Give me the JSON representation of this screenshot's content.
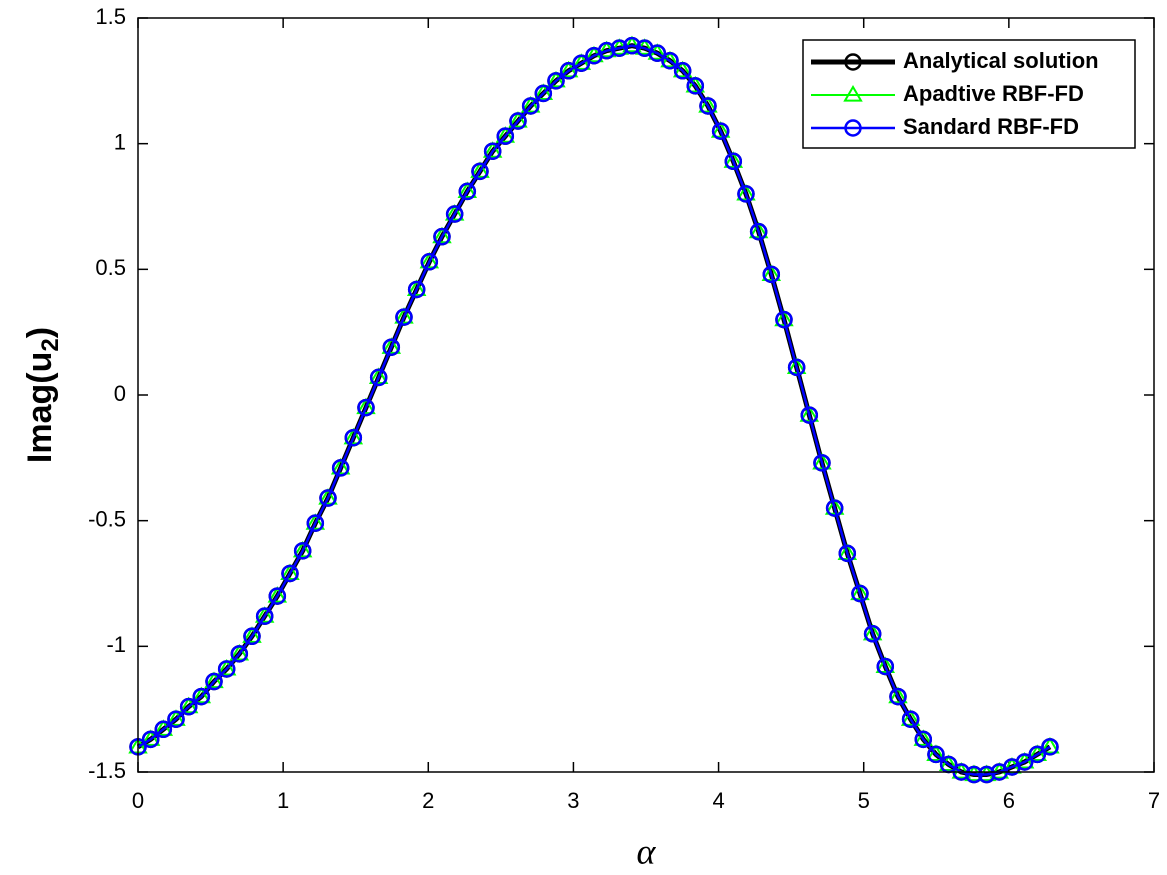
{
  "chart_data": {
    "type": "line",
    "xlabel": "α",
    "ylabel": {
      "main": "Imag(u",
      "sub": "2",
      "close": ")"
    },
    "xlim": [
      0,
      7
    ],
    "xticks": [
      0,
      1,
      2,
      3,
      4,
      5,
      6,
      7
    ],
    "ylim": [
      -1.5,
      1.5
    ],
    "yticks": [
      -1.5,
      -1,
      -0.5,
      0,
      0.5,
      1,
      1.5
    ],
    "grid": false,
    "legend": "northeast",
    "x": [
      0,
      0.0873,
      0.1745,
      0.2618,
      0.3491,
      0.4363,
      0.5236,
      0.6109,
      0.6981,
      0.7854,
      0.8727,
      0.9599,
      1.0472,
      1.1345,
      1.2217,
      1.309,
      1.3963,
      1.4835,
      1.5708,
      1.6581,
      1.7453,
      1.8326,
      1.9199,
      2.0071,
      2.0944,
      2.1817,
      2.2689,
      2.3562,
      2.4435,
      2.5307,
      2.618,
      2.7053,
      2.7925,
      2.8798,
      2.9671,
      3.0543,
      3.1416,
      3.2289,
      3.3161,
      3.4034,
      3.4907,
      3.5779,
      3.6652,
      3.7525,
      3.8397,
      3.927,
      4.0143,
      4.1015,
      4.1888,
      4.2761,
      4.3633,
      4.4506,
      4.5379,
      4.6251,
      4.7124,
      4.7997,
      4.8869,
      4.9742,
      5.0615,
      5.1487,
      5.236,
      5.3233,
      5.4105,
      5.4978,
      5.5851,
      5.6723,
      5.7596,
      5.8469,
      5.9341,
      6.0214,
      6.1087,
      6.1959,
      6.2832
    ],
    "series": [
      {
        "name": "Analytical solution",
        "color": "#000000",
        "marker": "circle",
        "width": 5,
        "values": [
          -1.4,
          -1.37,
          -1.33,
          -1.29,
          -1.24,
          -1.2,
          -1.14,
          -1.09,
          -1.03,
          -0.96,
          -0.88,
          -0.8,
          -0.71,
          -0.62,
          -0.51,
          -0.41,
          -0.29,
          -0.17,
          -0.05,
          0.07,
          0.19,
          0.31,
          0.42,
          0.53,
          0.63,
          0.72,
          0.81,
          0.89,
          0.97,
          1.03,
          1.09,
          1.15,
          1.2,
          1.25,
          1.29,
          1.32,
          1.35,
          1.37,
          1.38,
          1.39,
          1.38,
          1.36,
          1.33,
          1.29,
          1.23,
          1.15,
          1.05,
          0.93,
          0.8,
          0.65,
          0.48,
          0.3,
          0.11,
          -0.08,
          -0.27,
          -0.45,
          -0.63,
          -0.79,
          -0.95,
          -1.08,
          -1.2,
          -1.29,
          -1.37,
          -1.43,
          -1.47,
          -1.5,
          -1.51,
          -1.51,
          -1.5,
          -1.48,
          -1.46,
          -1.43,
          -1.4
        ]
      },
      {
        "name": "Apadtive RBF-FD",
        "color": "#00ff00",
        "marker": "triangle",
        "width": 2,
        "values": [
          -1.4,
          -1.37,
          -1.33,
          -1.29,
          -1.24,
          -1.2,
          -1.14,
          -1.09,
          -1.03,
          -0.96,
          -0.88,
          -0.8,
          -0.71,
          -0.62,
          -0.51,
          -0.41,
          -0.29,
          -0.17,
          -0.05,
          0.07,
          0.19,
          0.31,
          0.42,
          0.53,
          0.63,
          0.72,
          0.81,
          0.89,
          0.97,
          1.03,
          1.09,
          1.15,
          1.2,
          1.25,
          1.29,
          1.32,
          1.35,
          1.37,
          1.38,
          1.39,
          1.38,
          1.36,
          1.33,
          1.29,
          1.23,
          1.15,
          1.05,
          0.93,
          0.8,
          0.65,
          0.48,
          0.3,
          0.11,
          -0.08,
          -0.27,
          -0.45,
          -0.63,
          -0.79,
          -0.95,
          -1.08,
          -1.2,
          -1.29,
          -1.37,
          -1.43,
          -1.47,
          -1.5,
          -1.51,
          -1.51,
          -1.5,
          -1.48,
          -1.46,
          -1.43,
          -1.4
        ]
      },
      {
        "name": "Sandard RBF-FD",
        "color": "#0000ff",
        "marker": "circle",
        "width": 2.5,
        "values": [
          -1.4,
          -1.37,
          -1.33,
          -1.29,
          -1.24,
          -1.2,
          -1.14,
          -1.09,
          -1.03,
          -0.96,
          -0.88,
          -0.8,
          -0.71,
          -0.62,
          -0.51,
          -0.41,
          -0.29,
          -0.17,
          -0.05,
          0.07,
          0.19,
          0.31,
          0.42,
          0.53,
          0.63,
          0.72,
          0.81,
          0.89,
          0.97,
          1.03,
          1.09,
          1.15,
          1.2,
          1.25,
          1.29,
          1.32,
          1.35,
          1.37,
          1.38,
          1.39,
          1.38,
          1.36,
          1.33,
          1.29,
          1.23,
          1.15,
          1.05,
          0.93,
          0.8,
          0.65,
          0.48,
          0.3,
          0.11,
          -0.08,
          -0.27,
          -0.45,
          -0.63,
          -0.79,
          -0.95,
          -1.08,
          -1.2,
          -1.29,
          -1.37,
          -1.43,
          -1.47,
          -1.5,
          -1.51,
          -1.51,
          -1.5,
          -1.48,
          -1.46,
          -1.43,
          -1.4
        ]
      }
    ]
  }
}
